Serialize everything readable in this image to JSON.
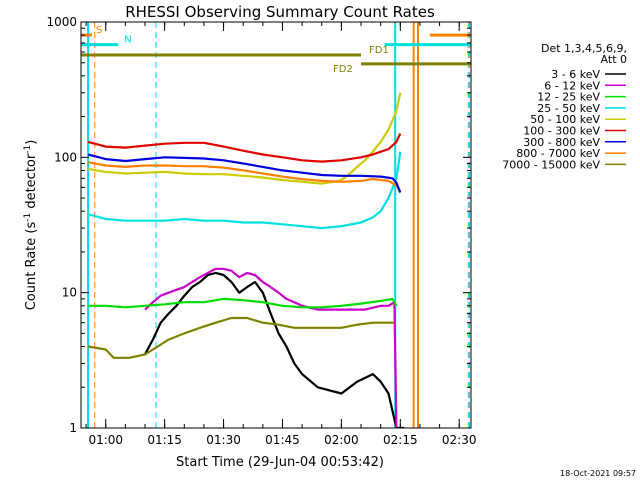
{
  "chart_data": {
    "type": "line",
    "title": "RHESSI Observing Summary Count Rates",
    "xlabel": "Start Time (29-Jun-04 00:53:42)",
    "ylabel": "Count Rate (s",
    "ylabel_sup": "-1",
    "ylabel_tail": " detector",
    "ylabel_close": ")",
    "y_scale": "log",
    "ylim": [
      1,
      1000
    ],
    "xlim_minutes": [
      53.7,
      153.0
    ],
    "x_ticks": [
      {
        "label": "01:00",
        "minutes": 60
      },
      {
        "label": "01:15",
        "minutes": 75
      },
      {
        "label": "01:30",
        "minutes": 90
      },
      {
        "label": "01:45",
        "minutes": 105
      },
      {
        "label": "02:00",
        "minutes": 120
      },
      {
        "label": "02:15",
        "minutes": 135
      },
      {
        "label": "02:30",
        "minutes": 150
      }
    ],
    "y_ticks": [
      {
        "label": "1",
        "value": 1
      },
      {
        "label": "10",
        "value": 10
      },
      {
        "label": "100",
        "value": 100
      },
      {
        "label": "1000",
        "value": 1000
      }
    ],
    "legend_title": [
      "Det 1,3,4,5,6,9,",
      "Att 0"
    ],
    "legend_position": "right",
    "footer_date": "18-Oct-2021 09:57",
    "series": [
      {
        "name": "3 - 6 keV",
        "color": "#000000",
        "x": [
          70,
          72,
          74,
          76,
          78,
          80,
          82,
          84,
          86,
          88,
          90,
          92,
          94,
          96,
          98,
          100,
          102,
          104,
          106,
          108,
          110,
          114,
          120,
          124,
          128,
          130,
          132,
          134,
          136
        ],
        "y": [
          3.5,
          4.5,
          6,
          7,
          8,
          9.5,
          11,
          12,
          13.5,
          14,
          13.5,
          12,
          10,
          11,
          12,
          10,
          7,
          5,
          4,
          3,
          2.5,
          2,
          1.8,
          2.2,
          2.5,
          2.2,
          1.8,
          1,
          1
        ]
      },
      {
        "name": "6 - 12 keV",
        "color": "#cc00cc",
        "x": [
          70,
          72,
          74,
          76,
          78,
          80,
          82,
          84,
          86,
          88,
          90,
          92,
          94,
          96,
          98,
          100,
          102,
          104,
          106,
          108,
          110,
          114,
          120,
          126,
          130,
          132,
          133.5,
          134
        ],
        "y": [
          7.5,
          8.5,
          9.5,
          10,
          10.5,
          11,
          12,
          13,
          14,
          15,
          15,
          14.5,
          13,
          14,
          13.5,
          12,
          11,
          10,
          9,
          8.5,
          8,
          7.5,
          7.5,
          7.5,
          8,
          8,
          8.5,
          1
        ]
      },
      {
        "name": "12 - 25 keV",
        "color": "#00dd00",
        "x": [
          55.5,
          60,
          65,
          70,
          75,
          80,
          85,
          90,
          95,
          100,
          105,
          110,
          115,
          120,
          125,
          130,
          133,
          134
        ],
        "y": [
          8,
          8,
          7.8,
          8,
          8.2,
          8.5,
          8.5,
          9,
          8.8,
          8.5,
          8,
          7.8,
          7.8,
          8,
          8.3,
          8.7,
          9,
          8
        ]
      },
      {
        "name": "25 - 50 keV",
        "color": "#00e0e0",
        "x": [
          55.5,
          60,
          65,
          70,
          75,
          80,
          85,
          90,
          95,
          100,
          105,
          110,
          115,
          120,
          125,
          128,
          130,
          132,
          134,
          135
        ],
        "y": [
          38,
          35,
          34,
          34,
          34,
          35,
          34,
          34,
          33,
          33,
          32,
          31,
          30,
          31,
          33,
          36,
          40,
          50,
          70,
          110
        ]
      },
      {
        "name": "50 - 100 keV",
        "color": "#cccc00",
        "x": [
          55.5,
          60,
          65,
          70,
          75,
          80,
          85,
          90,
          95,
          100,
          105,
          110,
          115,
          118,
          120,
          122,
          124,
          126,
          128,
          130,
          132,
          134,
          135
        ],
        "y": [
          82,
          78,
          76,
          77,
          78,
          76,
          75,
          75,
          73,
          71,
          68,
          66,
          64,
          66,
          68,
          75,
          85,
          95,
          110,
          130,
          160,
          220,
          300
        ]
      },
      {
        "name": "100 - 300 keV",
        "color": "#e00000",
        "x": [
          55.5,
          60,
          65,
          70,
          75,
          80,
          85,
          90,
          95,
          100,
          105,
          110,
          115,
          120,
          125,
          128,
          130,
          132,
          134,
          135
        ],
        "y": [
          130,
          120,
          118,
          122,
          126,
          128,
          128,
          120,
          112,
          105,
          100,
          95,
          93,
          95,
          100,
          105,
          110,
          115,
          130,
          150
        ]
      },
      {
        "name": "300 - 800 keV",
        "color": "#0000dd",
        "x": [
          55.5,
          60,
          65,
          70,
          75,
          80,
          85,
          90,
          95,
          100,
          105,
          110,
          115,
          120,
          125,
          130,
          133,
          134,
          135
        ],
        "y": [
          105,
          97,
          94,
          97,
          100,
          99,
          98,
          95,
          90,
          85,
          80,
          77,
          74,
          73,
          73,
          72,
          70,
          65,
          55
        ]
      },
      {
        "name": "800 - 7000 keV",
        "color": "#ff8000",
        "x": [
          55.5,
          60,
          65,
          70,
          75,
          80,
          85,
          90,
          95,
          100,
          105,
          110,
          115,
          120,
          125,
          128,
          130,
          132,
          134,
          135
        ],
        "y": [
          92,
          87,
          85,
          87,
          87,
          86,
          86,
          84,
          80,
          76,
          72,
          69,
          67,
          66,
          67,
          69,
          68,
          67,
          62,
          55
        ]
      },
      {
        "name": "7000 - 15000 keV",
        "color": "#808000",
        "x": [
          55.5,
          60,
          62,
          66,
          70,
          72,
          76,
          80,
          84,
          88,
          92,
          96,
          100,
          104,
          108,
          112,
          116,
          120,
          124,
          128,
          132,
          133.5
        ],
        "y": [
          4,
          3.8,
          3.3,
          3.3,
          3.5,
          3.8,
          4.5,
          5,
          5.5,
          6,
          6.5,
          6.5,
          6,
          5.8,
          5.5,
          5.5,
          5.5,
          5.5,
          5.8,
          6,
          6,
          6
        ]
      }
    ],
    "flags": [
      {
        "label": "S",
        "color": "#ff8000",
        "segments": [
          [
            53.7,
            56.5
          ],
          [
            142.5,
            153.0
          ]
        ],
        "value": 800
      },
      {
        "label": "N",
        "color": "#00e0e0",
        "segments": [
          [
            53.7,
            63.2
          ],
          [
            131.0,
            153.0
          ]
        ],
        "value": 680
      },
      {
        "label": "FD1",
        "color": "#808000",
        "segments": [
          [
            53.7,
            125.0
          ]
        ],
        "value": 570
      },
      {
        "label": "FD2",
        "color": "#808000",
        "segments": [
          [
            125.0,
            153.0
          ]
        ],
        "value": 490
      }
    ],
    "vlines": [
      {
        "minutes": 55.5,
        "color": "#00e0e0",
        "style": "solid"
      },
      {
        "minutes": 57.2,
        "color": "#ff8000",
        "style": "dashed"
      },
      {
        "minutes": 72.8,
        "color": "#00e0e0",
        "style": "dashed"
      },
      {
        "minutes": 133.7,
        "color": "#00e0e0",
        "style": "solid"
      },
      {
        "minutes": 138.4,
        "color": "#ff8000",
        "style": "solid"
      },
      {
        "minutes": 139.5,
        "color": "#ff8000",
        "style": "solid"
      },
      {
        "minutes": 152.3,
        "color": "#00e0e0",
        "style": "dashed"
      },
      {
        "minutes": 152.6,
        "color": "#ff8000",
        "style": "dashed"
      }
    ]
  }
}
